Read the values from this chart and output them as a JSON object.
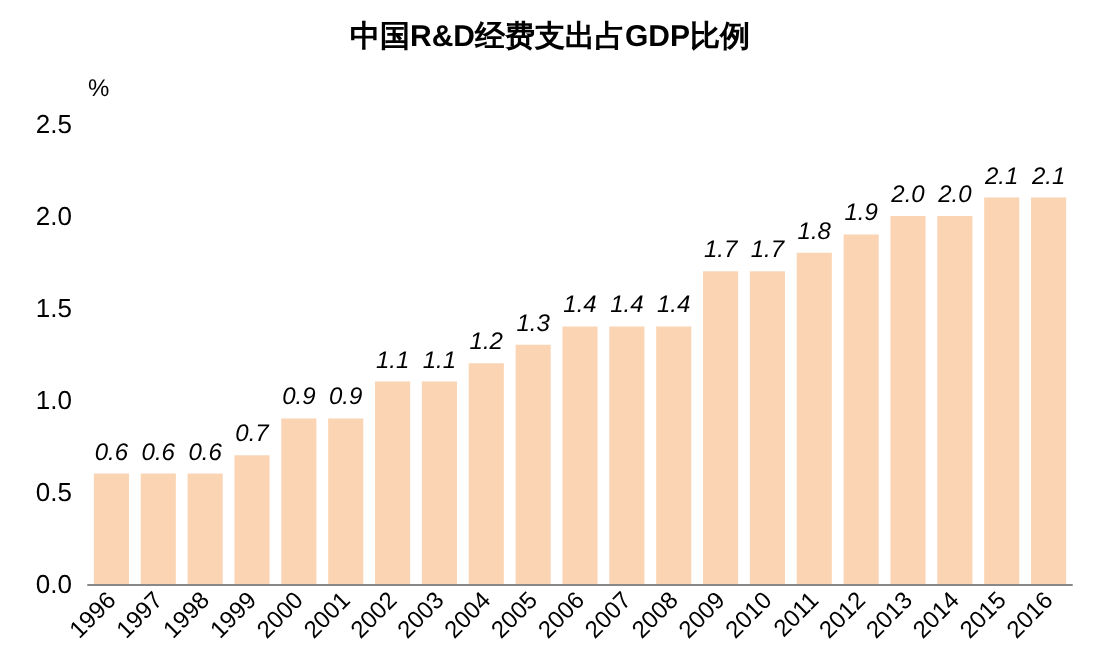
{
  "chart_data": {
    "type": "bar",
    "title": "中国R&D经费支出占GDP比例",
    "ylabel": "%",
    "categories": [
      "1996",
      "1997",
      "1998",
      "1999",
      "2000",
      "2001",
      "2002",
      "2003",
      "2004",
      "2005",
      "2006",
      "2007",
      "2008",
      "2009",
      "2010",
      "2011",
      "2012",
      "2013",
      "2014",
      "2015",
      "2016"
    ],
    "values": [
      0.6,
      0.6,
      0.6,
      0.7,
      0.9,
      0.9,
      1.1,
      1.1,
      1.2,
      1.3,
      1.4,
      1.4,
      1.4,
      1.7,
      1.7,
      1.8,
      1.9,
      2.0,
      2.0,
      2.1,
      2.1
    ],
    "value_labels": [
      "0.6",
      "0.6",
      "0.6",
      "0.7",
      "0.9",
      "0.9",
      "1.1",
      "1.1",
      "1.2",
      "1.3",
      "1.4",
      "1.4",
      "1.4",
      "1.7",
      "1.7",
      "1.8",
      "1.9",
      "2.0",
      "2.0",
      "2.1",
      "2.1"
    ],
    "color": "#fbd4b4",
    "ylim": [
      0,
      2.5
    ],
    "yticks": [
      {
        "value": 0,
        "label": "0.0"
      },
      {
        "value": 0.5,
        "label": "0.5"
      },
      {
        "value": 1,
        "label": "1.0"
      },
      {
        "value": 1.5,
        "label": "1.5"
      },
      {
        "value": 2,
        "label": "2.0"
      },
      {
        "value": 2.5,
        "label": "2.5"
      }
    ],
    "grid": false
  }
}
